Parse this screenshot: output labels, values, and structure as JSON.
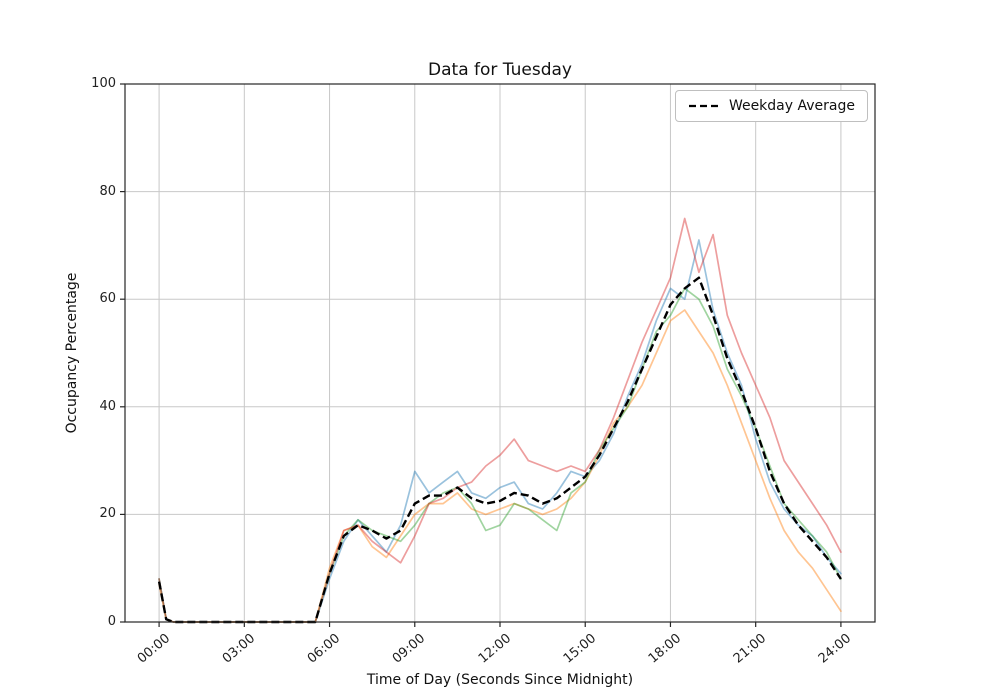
{
  "figure": {
    "background_color": "#ffffff",
    "grid_color": "#c8c8c8",
    "spine_color": "#262626"
  },
  "chart_data": {
    "type": "line",
    "title": "Data for Tuesday",
    "xlabel": "Time of Day (Seconds Since Midnight)",
    "ylabel": "Occupancy Percentage",
    "ylim": [
      0,
      100
    ],
    "xlim_hours": [
      0,
      24
    ],
    "grid": true,
    "legend": {
      "label": "Weekday Average",
      "position": "upper right",
      "line_style": "dashed",
      "line_color": "#000000"
    },
    "x_ticks": [
      0,
      3,
      6,
      9,
      12,
      15,
      18,
      21,
      24
    ],
    "x_tick_labels": [
      "00:00",
      "03:00",
      "06:00",
      "09:00",
      "12:00",
      "15:00",
      "18:00",
      "21:00",
      "24:00"
    ],
    "y_ticks": [
      0,
      20,
      40,
      60,
      80,
      100
    ],
    "x": [
      0,
      0.25,
      0.5,
      1,
      1.5,
      2,
      2.5,
      3,
      3.5,
      4,
      4.5,
      5,
      5.5,
      6,
      6.5,
      7,
      7.5,
      8,
      8.5,
      9,
      9.5,
      10,
      10.5,
      11,
      11.5,
      12,
      12.5,
      13,
      13.5,
      14,
      14.5,
      15,
      15.5,
      16,
      16.5,
      17,
      17.5,
      18,
      18.5,
      19,
      19.5,
      20,
      20.5,
      21,
      21.5,
      22,
      22.5,
      23,
      23.5,
      24
    ],
    "series": [
      {
        "name": "weekday-series-blue",
        "color": "#1f77b4",
        "opacity": 0.45,
        "values": [
          8,
          0.5,
          0,
          0,
          0,
          0,
          0,
          0,
          0,
          0,
          0,
          0,
          0,
          8,
          15,
          19,
          16,
          13,
          18,
          28,
          24,
          26,
          28,
          24,
          23,
          25,
          26,
          22,
          21,
          24,
          28,
          27,
          30,
          35,
          42,
          48,
          56,
          62,
          60,
          71,
          58,
          50,
          44,
          34,
          26,
          21,
          18,
          16,
          12,
          9
        ]
      },
      {
        "name": "weekday-series-orange",
        "color": "#ff7f0e",
        "opacity": 0.45,
        "values": [
          7,
          0.5,
          0,
          0,
          0,
          0,
          0,
          0,
          0,
          0,
          0,
          0,
          0,
          10,
          17,
          18,
          14,
          12,
          16,
          20,
          22,
          22,
          24,
          21,
          20,
          21,
          22,
          21,
          20,
          21,
          23,
          26,
          31,
          37,
          40,
          44,
          50,
          56,
          58,
          54,
          50,
          44,
          37,
          30,
          23,
          17,
          13,
          10,
          6,
          2
        ]
      },
      {
        "name": "weekday-series-green",
        "color": "#2ca02c",
        "opacity": 0.45,
        "values": [
          8,
          0.5,
          0,
          0,
          0,
          0,
          0,
          0,
          0,
          0,
          0,
          0,
          0,
          9,
          16,
          19,
          17,
          16,
          15,
          18,
          22,
          24,
          25,
          22,
          17,
          18,
          22,
          21,
          19,
          17,
          24,
          26,
          32,
          36,
          40,
          47,
          54,
          57,
          62,
          60,
          55,
          47,
          42,
          36,
          29,
          22,
          19,
          16,
          13,
          8
        ]
      },
      {
        "name": "weekday-series-red",
        "color": "#d62728",
        "opacity": 0.45,
        "values": [
          8,
          0.5,
          0,
          0,
          0,
          0,
          0,
          0,
          0,
          0,
          0,
          0,
          0,
          9,
          17,
          18,
          15,
          13,
          11,
          16,
          22,
          23,
          25,
          26,
          29,
          31,
          34,
          30,
          29,
          28,
          29,
          28,
          32,
          38,
          45,
          52,
          58,
          64,
          75,
          65,
          72,
          57,
          50,
          44,
          38,
          30,
          26,
          22,
          18,
          13
        ]
      }
    ],
    "average_series": {
      "name": "Weekday Average",
      "color": "#000000",
      "dashed": true,
      "values": [
        7.5,
        0.5,
        0,
        0,
        0,
        0,
        0,
        0,
        0,
        0,
        0,
        0,
        0,
        9,
        16,
        18,
        17,
        15.5,
        17,
        22,
        23.5,
        23.5,
        25,
        23,
        22,
        22.5,
        24,
        23.5,
        22,
        23,
        25,
        27,
        31,
        36,
        41,
        47,
        53,
        59,
        62,
        64,
        57,
        49,
        43,
        36,
        28,
        22,
        18,
        15,
        12,
        8
      ]
    }
  }
}
